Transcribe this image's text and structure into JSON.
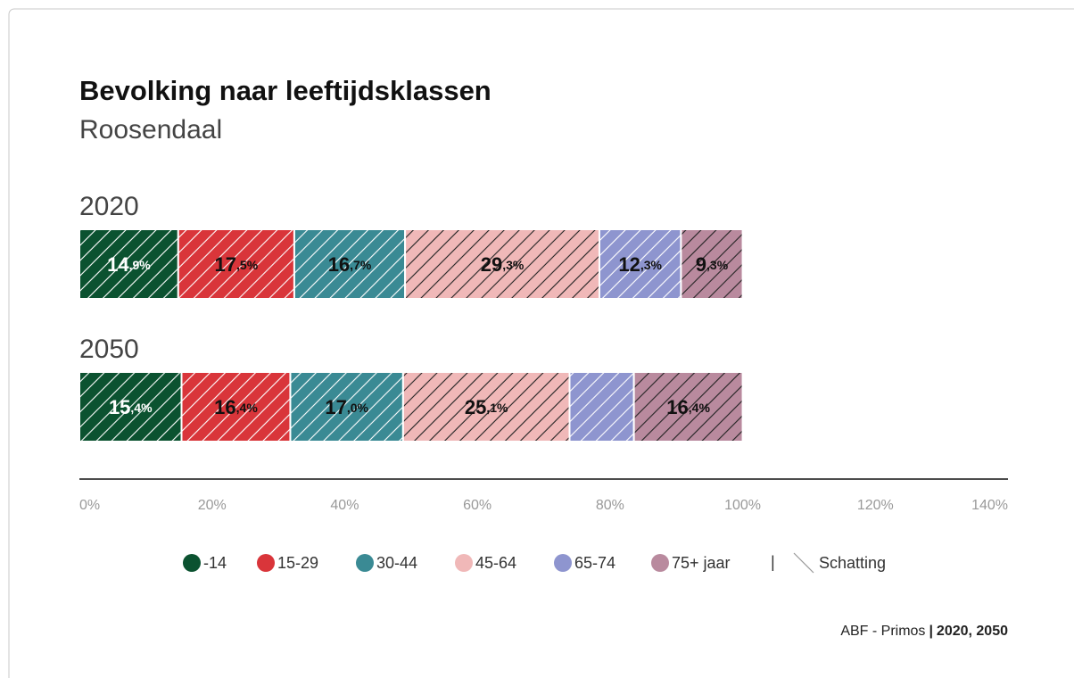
{
  "chart_data": {
    "type": "stacked-bar-horizontal",
    "title": "Bevolking naar leeftijdsklassen",
    "subtitle": "Roosendaal",
    "categories": [
      "2020",
      "2050"
    ],
    "series": [
      {
        "name": "-14",
        "color": "#0b5230",
        "hatch_color": "#ffffff",
        "values": [
          14.9,
          15.4
        ],
        "value_labels": [
          "14,9%",
          "15,4%"
        ]
      },
      {
        "name": "15-29",
        "color": "#d9353a",
        "hatch_color": "#ffffff",
        "values": [
          17.5,
          16.4
        ],
        "value_labels": [
          "17,5%",
          "16,4%"
        ]
      },
      {
        "name": "30-44",
        "color": "#3a8a94",
        "hatch_color": "#ffffff",
        "values": [
          16.7,
          17.0
        ],
        "value_labels": [
          "16,7%",
          "17,0%"
        ]
      },
      {
        "name": "45-64",
        "color": "#f0b8b8",
        "hatch_color": "#222222",
        "values": [
          29.3,
          25.1
        ],
        "value_labels": [
          "29,3%",
          "25,1%"
        ]
      },
      {
        "name": "65-74",
        "color": "#8e95cf",
        "hatch_color": "#ffffff",
        "values": [
          12.3,
          9.7
        ],
        "value_labels": [
          "12,3%",
          null
        ]
      },
      {
        "name": "75+ jaar",
        "color": "#b98a9e",
        "hatch_color": "#222222",
        "values": [
          9.3,
          16.4
        ],
        "value_labels": [
          "9,3%",
          "16,4%"
        ]
      }
    ],
    "xlim": [
      0,
      140
    ],
    "xticks": [
      {
        "value": 0,
        "label": "0%"
      },
      {
        "value": 20,
        "label": "20%"
      },
      {
        "value": 40,
        "label": "40%"
      },
      {
        "value": 60,
        "label": "60%"
      },
      {
        "value": 80,
        "label": "80%"
      },
      {
        "value": 100,
        "label": "100%"
      },
      {
        "value": 120,
        "label": "120%"
      },
      {
        "value": 140,
        "label": "140%"
      }
    ],
    "legend_separator": "|",
    "estimate_label": "Schatting",
    "source": "ABF - Primos",
    "source_years": "2020, 2050"
  }
}
